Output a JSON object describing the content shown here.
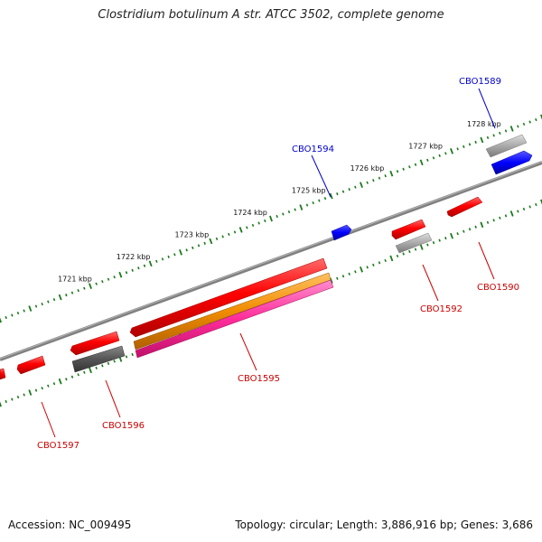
{
  "title": "Clostridium botulinum A str. ATCC 3502, complete genome",
  "footer": {
    "accession": "Accession: NC_009495",
    "topology": "Topology: circular; Length: 3,886,916 bp; Genes: 3,686"
  },
  "colors": {
    "backbone": "#808080",
    "ticks": "#1a7a1a",
    "forward_label": "#0000cc",
    "reverse_label": "#cc0000",
    "red_gene": "#ff0000",
    "gray_gene": "#a0a0a0",
    "dark_gene": "#555555",
    "blue_gene": "#0000ff",
    "orange_gene": "#f08c00",
    "magenta_gene": "#ff2d9b"
  },
  "kbp_ticks": [
    {
      "label": "1721 kbp",
      "kbp": 1721
    },
    {
      "label": "1722 kbp",
      "kbp": 1722
    },
    {
      "label": "1723 kbp",
      "kbp": 1723
    },
    {
      "label": "1724 kbp",
      "kbp": 1724
    },
    {
      "label": "1725 kbp",
      "kbp": 1725
    },
    {
      "label": "1726 kbp",
      "kbp": 1726
    },
    {
      "label": "1727 kbp",
      "kbp": 1727
    },
    {
      "label": "1728 kbp",
      "kbp": 1728
    }
  ],
  "gene_labels": [
    {
      "name": "CBO1589",
      "strand": "forward"
    },
    {
      "name": "CBO1594",
      "strand": "forward"
    },
    {
      "name": "CBO1590",
      "strand": "reverse"
    },
    {
      "name": "CBO1592",
      "strand": "reverse"
    },
    {
      "name": "CBO1595",
      "strand": "reverse"
    },
    {
      "name": "CBO1596",
      "strand": "reverse"
    },
    {
      "name": "CBO1597",
      "strand": "reverse"
    }
  ]
}
